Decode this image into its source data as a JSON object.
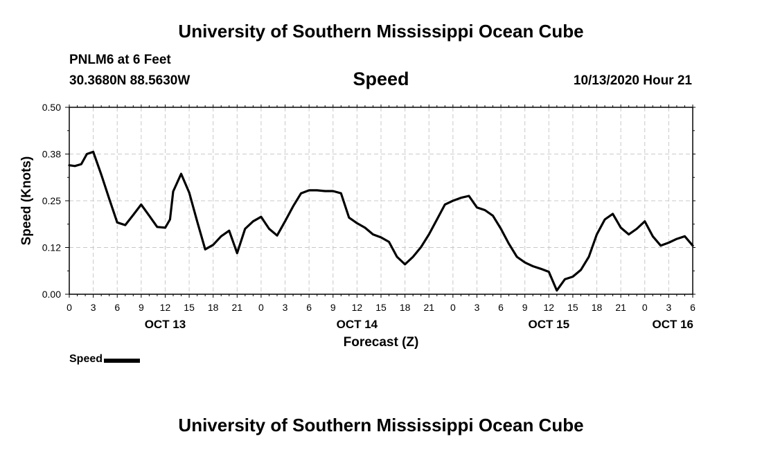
{
  "header": {
    "title": "University of Southern Mississippi Ocean Cube",
    "station": "PNLM6 at 6 Feet",
    "coordinates": "30.3680N 88.5630W",
    "variable": "Speed",
    "datetime": "10/13/2020 Hour 21"
  },
  "footer": {
    "title": "University of Southern Mississippi Ocean Cube"
  },
  "legend": {
    "label": "Speed"
  },
  "chart_data": {
    "type": "line",
    "title": "Speed",
    "xlabel": "Forecast (Z)",
    "ylabel": "Speed (Knots)",
    "ylim": [
      0,
      0.5
    ],
    "xlim": [
      0,
      78
    ],
    "x_unit": "hours since OCT 13 00Z",
    "y_ticks": [
      "0.00",
      "0.12",
      "0.25",
      "0.38",
      "0.50"
    ],
    "y_tick_values": [
      0,
      0.125,
      0.25,
      0.375,
      0.5
    ],
    "x_ticks": [
      {
        "h": 0,
        "label": "0"
      },
      {
        "h": 3,
        "label": "3"
      },
      {
        "h": 6,
        "label": "6"
      },
      {
        "h": 9,
        "label": "9"
      },
      {
        "h": 12,
        "label": "12"
      },
      {
        "h": 15,
        "label": "15"
      },
      {
        "h": 18,
        "label": "18"
      },
      {
        "h": 21,
        "label": "21"
      },
      {
        "h": 24,
        "label": "0"
      },
      {
        "h": 27,
        "label": "3"
      },
      {
        "h": 30,
        "label": "6"
      },
      {
        "h": 33,
        "label": "9"
      },
      {
        "h": 36,
        "label": "12"
      },
      {
        "h": 39,
        "label": "15"
      },
      {
        "h": 42,
        "label": "18"
      },
      {
        "h": 45,
        "label": "21"
      },
      {
        "h": 48,
        "label": "0"
      },
      {
        "h": 51,
        "label": "3"
      },
      {
        "h": 54,
        "label": "6"
      },
      {
        "h": 57,
        "label": "9"
      },
      {
        "h": 60,
        "label": "12"
      },
      {
        "h": 63,
        "label": "15"
      },
      {
        "h": 66,
        "label": "18"
      },
      {
        "h": 69,
        "label": "21"
      },
      {
        "h": 72,
        "label": "0"
      },
      {
        "h": 75,
        "label": "3"
      },
      {
        "h": 78,
        "label": "6"
      }
    ],
    "day_labels": [
      {
        "h": 12,
        "label": "OCT 13"
      },
      {
        "h": 36,
        "label": "OCT 14"
      },
      {
        "h": 60,
        "label": "OCT 15"
      },
      {
        "h": 78,
        "label": "OCT 16"
      }
    ],
    "series": [
      {
        "name": "Speed",
        "x": [
          0,
          0.7,
          1.5,
          2.2,
          3,
          4,
          5,
          6,
          7,
          8,
          9,
          10,
          11,
          12,
          12.6,
          13,
          14,
          15,
          16,
          17,
          18,
          19,
          20,
          21,
          22,
          23,
          24,
          25,
          26,
          27,
          28,
          29,
          30,
          31,
          32,
          33,
          34,
          35,
          36,
          37,
          38,
          39,
          40,
          41,
          42,
          43,
          44,
          45,
          46,
          47,
          48,
          49,
          50,
          51,
          52,
          53,
          54,
          55,
          56,
          57,
          58,
          59,
          60,
          61,
          62,
          63,
          64,
          65,
          66,
          67,
          68,
          69,
          70,
          71,
          72,
          73,
          74,
          75,
          76,
          77,
          78
        ],
        "values": [
          0.345,
          0.343,
          0.348,
          0.375,
          0.381,
          0.32,
          0.255,
          0.192,
          0.185,
          0.212,
          0.24,
          0.21,
          0.18,
          0.178,
          0.2,
          0.275,
          0.322,
          0.272,
          0.195,
          0.12,
          0.132,
          0.155,
          0.17,
          0.11,
          0.175,
          0.195,
          0.207,
          0.175,
          0.157,
          0.195,
          0.235,
          0.27,
          0.278,
          0.278,
          0.276,
          0.276,
          0.27,
          0.205,
          0.19,
          0.178,
          0.16,
          0.152,
          0.14,
          0.1,
          0.08,
          0.1,
          0.126,
          0.16,
          0.2,
          0.24,
          0.25,
          0.258,
          0.263,
          0.232,
          0.225,
          0.21,
          0.175,
          0.135,
          0.1,
          0.085,
          0.075,
          0.068,
          0.06,
          0.01,
          0.04,
          0.047,
          0.065,
          0.1,
          0.16,
          0.2,
          0.215,
          0.178,
          0.16,
          0.175,
          0.195,
          0.155,
          0.13,
          0.138,
          0.148,
          0.155,
          0.13
        ]
      }
    ],
    "grid": true,
    "legend_position": "bottom-left"
  }
}
